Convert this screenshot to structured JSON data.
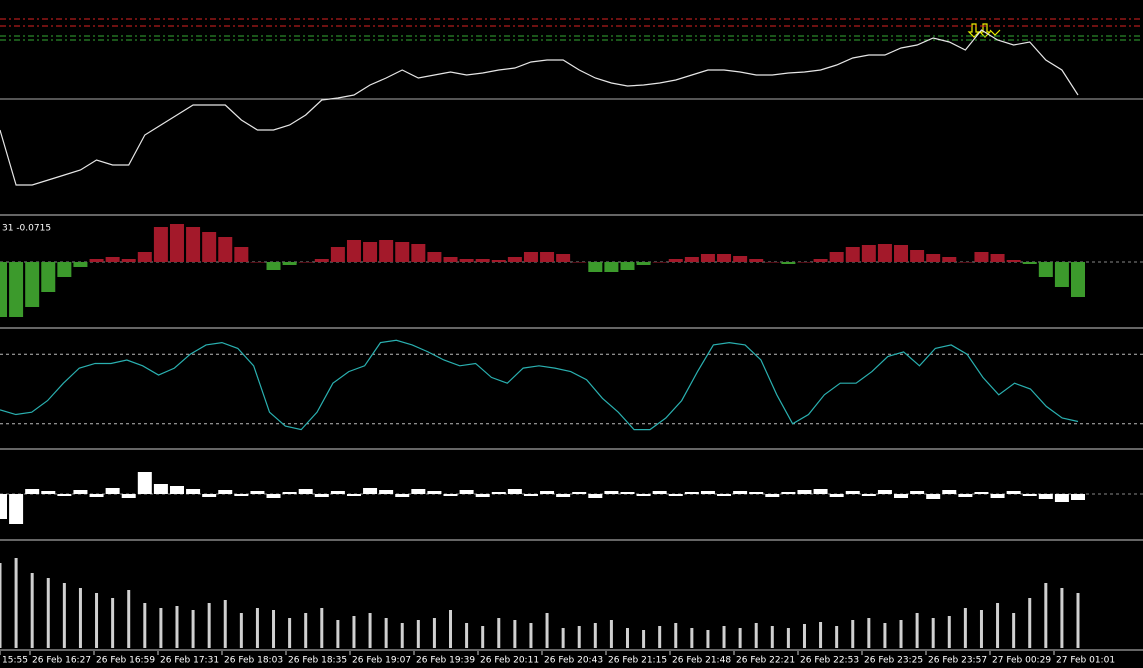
{
  "chart_data": [
    {
      "type": "line",
      "name": "price",
      "color": "#e6e6e6",
      "ylim": [
        0,
        213
      ],
      "levels": [
        {
          "value": 194,
          "color": "#d22"
        },
        {
          "value": 187,
          "color": "#d22"
        },
        {
          "value": 177,
          "color": "#3a3"
        },
        {
          "value": 173,
          "color": "#3a3"
        }
      ],
      "price_line": 114,
      "values": [
        83,
        28,
        28,
        33,
        38,
        43,
        53,
        48,
        48,
        78,
        88,
        98,
        108,
        108,
        108,
        93,
        83,
        83,
        88,
        98,
        113,
        115,
        118,
        128,
        135,
        143,
        135,
        138,
        141,
        138,
        140,
        143,
        145,
        151,
        153,
        153,
        143,
        135,
        130,
        127,
        128,
        130,
        133,
        138,
        143,
        143,
        141,
        138,
        138,
        140,
        141,
        143,
        148,
        155,
        158,
        158,
        165,
        168,
        175,
        171,
        163,
        183,
        173,
        168,
        171,
        153,
        143,
        118
      ]
    },
    {
      "type": "bar",
      "name": "oscillator",
      "label": "31 -0.0715",
      "up_color": "#a3192a",
      "down_color": "#3c9a2c",
      "ylim": [
        -64,
        44
      ],
      "values": [
        -55,
        -55,
        -45,
        -30,
        -15,
        -5,
        3,
        5,
        3,
        10,
        35,
        38,
        35,
        30,
        25,
        15,
        0,
        -8,
        -3,
        0,
        3,
        15,
        22,
        20,
        22,
        20,
        18,
        10,
        5,
        3,
        3,
        2,
        5,
        10,
        10,
        8,
        0,
        -10,
        -10,
        -8,
        -3,
        0,
        3,
        5,
        8,
        8,
        6,
        3,
        0,
        -2,
        0,
        3,
        10,
        15,
        17,
        18,
        17,
        12,
        8,
        5,
        0,
        10,
        8,
        2,
        -2,
        -15,
        -25,
        -35
      ]
    },
    {
      "type": "line",
      "name": "stochastic",
      "color": "#2ab0b0",
      "ylim": [
        0,
        100
      ],
      "levels": [
        80,
        20
      ],
      "values": [
        32,
        28,
        30,
        40,
        55,
        68,
        72,
        72,
        75,
        70,
        62,
        68,
        80,
        88,
        90,
        85,
        70,
        30,
        18,
        15,
        30,
        55,
        65,
        70,
        90,
        92,
        88,
        82,
        75,
        70,
        72,
        60,
        55,
        68,
        70,
        68,
        65,
        58,
        42,
        30,
        15,
        15,
        25,
        40,
        65,
        88,
        90,
        88,
        75,
        45,
        20,
        28,
        45,
        55,
        55,
        65,
        78,
        82,
        70,
        85,
        88,
        80,
        60,
        45,
        55,
        50,
        35,
        25,
        22
      ]
    },
    {
      "type": "bar",
      "name": "histogram",
      "color": "#ffffff",
      "ylim": [
        -44,
        43
      ],
      "values": [
        -25,
        -30,
        5,
        3,
        -2,
        4,
        -3,
        6,
        -4,
        22,
        10,
        8,
        5,
        -3,
        4,
        -2,
        3,
        -4,
        2,
        5,
        -3,
        3,
        -2,
        6,
        4,
        -3,
        5,
        3,
        -2,
        4,
        -3,
        2,
        5,
        -2,
        3,
        -3,
        2,
        -4,
        3,
        2,
        -2,
        3,
        -2,
        2,
        3,
        -2,
        3,
        2,
        -3,
        2,
        4,
        5,
        -3,
        3,
        -2,
        4,
        -4,
        3,
        -5,
        4,
        -3,
        2,
        -4,
        3,
        -2,
        -5,
        -8,
        -6
      ]
    },
    {
      "type": "bar",
      "name": "volume",
      "color": "#d0d0d0",
      "ylim": [
        0,
        105
      ],
      "values": [
        85,
        90,
        75,
        70,
        65,
        60,
        55,
        50,
        58,
        45,
        40,
        42,
        38,
        45,
        48,
        35,
        40,
        38,
        30,
        35,
        40,
        28,
        32,
        35,
        30,
        25,
        28,
        30,
        38,
        25,
        22,
        30,
        28,
        25,
        35,
        20,
        22,
        25,
        28,
        20,
        18,
        22,
        25,
        20,
        18,
        22,
        20,
        25,
        22,
        20,
        24,
        26,
        22,
        28,
        30,
        25,
        28,
        35,
        30,
        32,
        40,
        38,
        45,
        35,
        50,
        65,
        60,
        55
      ]
    }
  ],
  "time_axis": {
    "labels": [
      "15:55",
      "26 Feb 16:27",
      "26 Feb 16:59",
      "26 Feb 17:31",
      "26 Feb 18:03",
      "26 Feb 18:35",
      "26 Feb 19:07",
      "26 Feb 19:39",
      "26 Feb 20:11",
      "26 Feb 20:43",
      "26 Feb 21:15",
      "26 Feb 21:48",
      "26 Feb 22:21",
      "26 Feb 22:53",
      "26 Feb 23:25",
      "26 Feb 23:57",
      "27 Feb 00:29",
      "27 Feb 01:01"
    ]
  }
}
